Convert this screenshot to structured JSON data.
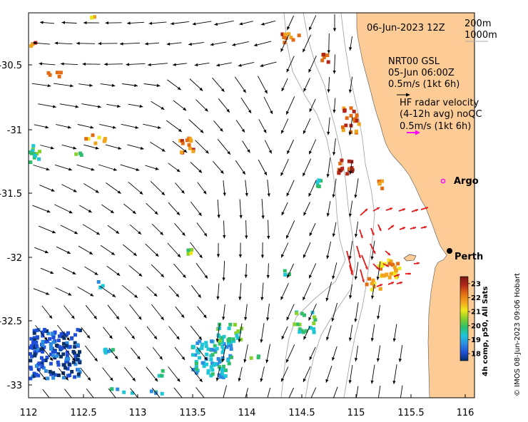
{
  "map": {
    "date": "06-Jun-2023 12Z",
    "isobaths": {
      "shallow": "200m",
      "deep": "1000m"
    },
    "model": {
      "name": "NRT00 GSL",
      "time": "05-Jun 06:00Z",
      "scale": "0.5m/s (1kt 6h)"
    },
    "hf_radar": {
      "line1": "HF radar velocity",
      "line2": "(4-12h avg) noQC",
      "scale": "0.5m/s (1kt 6h)"
    },
    "argo_label": "Argo",
    "city_label": "Perth",
    "credit": "© IMOS 08-Jun-2023 09:06 Hobart",
    "colorbar": {
      "label": "4h comp, p50, All Sats",
      "ticks": [
        "23",
        "22",
        "21",
        "20",
        "19",
        "18"
      ],
      "range": [
        17.5,
        23.5
      ],
      "colors": [
        "#08306b",
        "#1f4fd6",
        "#2d8ce0",
        "#1fc6d8",
        "#2fbf6a",
        "#86d12a",
        "#f0e61c",
        "#f2a31c",
        "#e06b12",
        "#b2261a",
        "#7a1810"
      ]
    },
    "axes": {
      "x_ticks": [
        "112",
        "112.5",
        "113",
        "113.5",
        "114",
        "114.5",
        "115",
        "115.5",
        "116"
      ],
      "y_ticks": [
        "-30.5",
        "-31",
        "-31.5",
        "-32",
        "-32.5",
        "-33"
      ]
    },
    "colors": {
      "land": "#fdcc96",
      "vector": "#000000",
      "radar": "#e21a1a",
      "argo": "#ff00ff",
      "isobath": "#a8a8a8"
    }
  }
}
